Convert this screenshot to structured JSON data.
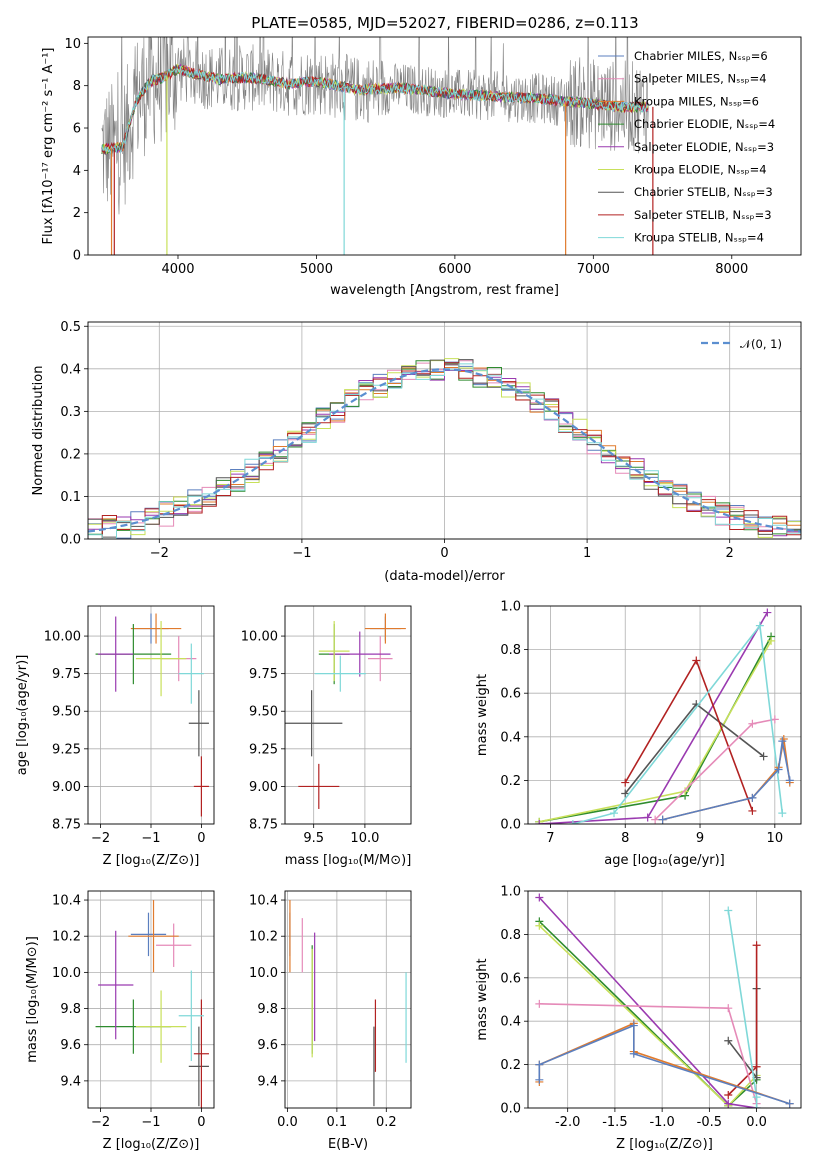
{
  "chart_data": [
    {
      "id": "spectrum",
      "type": "line",
      "title": "PLATE=0585, MJD=52027, FIBERID=0286, z=0.113",
      "xlabel": "wavelength [Angstrom, rest frame]",
      "ylabel": "Flux [fλ10⁻¹⁷ erg cm⁻² s⁻¹ A⁻¹]",
      "xlim": [
        3350,
        8500
      ],
      "ylim": [
        0,
        10.3
      ],
      "xticks": [
        4000,
        5000,
        6000,
        7000,
        8000
      ],
      "yticks": [
        0,
        2,
        4,
        6,
        8,
        10
      ],
      "legend_position": "top-right",
      "legend": [
        {
          "label": "Chabrier MILES, Nₛₛₚ=6",
          "color": "#5b7fbf"
        },
        {
          "label": "Salpeter MILES, Nₛₛₚ=4",
          "color": "#e58ab8"
        },
        {
          "label": "Kroupa MILES, Nₛₛₚ=6",
          "color": "#e07b2e"
        },
        {
          "label": "Chabrier ELODIE, Nₛₛₚ=4",
          "color": "#2e8b2e"
        },
        {
          "label": "Salpeter ELODIE, Nₛₛₚ=3",
          "color": "#9a3ab0"
        },
        {
          "label": "Kroupa ELODIE, Nₛₛₚ=4",
          "color": "#c8e05a"
        },
        {
          "label": "Chabrier STELIB, Nₛₛₚ=3",
          "color": "#555555"
        },
        {
          "label": "Salpeter STELIB, Nₛₛₚ=3",
          "color": "#b22222"
        },
        {
          "label": "Kroupa STELIB, Nₛₛₚ=4",
          "color": "#7fd8d8"
        }
      ],
      "data_color": "#808080",
      "continuum": {
        "x": [
          3450,
          3600,
          3700,
          3800,
          3900,
          4000,
          4100,
          4300,
          4500,
          4800,
          5000,
          5300,
          5600,
          6000,
          6300,
          6600,
          6900,
          7200,
          7400
        ],
        "y": [
          5.0,
          5.1,
          7.3,
          8.2,
          8.4,
          8.8,
          8.6,
          8.3,
          8.4,
          8.1,
          8.2,
          7.8,
          7.9,
          7.6,
          7.5,
          7.4,
          7.2,
          7.0,
          7.0
        ]
      }
    },
    {
      "id": "residuals",
      "type": "line",
      "xlabel": "(data-model)/error",
      "ylabel": "Normed distribution",
      "xlim": [
        -2.5,
        2.5
      ],
      "ylim": [
        0,
        0.51
      ],
      "xticks": [
        -2,
        -1,
        0,
        1,
        2
      ],
      "yticks": [
        0.0,
        0.1,
        0.2,
        0.3,
        0.4,
        0.5
      ],
      "reference_label": "𝒩(0, 1)",
      "reference_color": "#5b8fd0",
      "bin_width": 0.1
    },
    {
      "id": "age_vs_Z",
      "type": "scatter",
      "xlabel": "Z [log₁₀(Z/Z⊙)]",
      "ylabel": "age  [log₁₀(age/yr)]",
      "xlim": [
        -2.25,
        0.25
      ],
      "ylim": [
        8.75,
        10.2
      ],
      "xticks": [
        -2,
        -1,
        0
      ],
      "yticks": [
        8.75,
        9.0,
        9.25,
        9.5,
        9.75,
        10.0
      ],
      "points": [
        {
          "x": -1.0,
          "y": 10.05,
          "xerr": 0.35,
          "yerr": 0.1,
          "color": "#5b7fbf"
        },
        {
          "x": -0.45,
          "y": 9.85,
          "xerr": 0.35,
          "yerr": 0.15,
          "color": "#e58ab8"
        },
        {
          "x": -0.9,
          "y": 10.05,
          "xerr": 0.5,
          "yerr": 0.1,
          "color": "#e07b2e"
        },
        {
          "x": -1.35,
          "y": 9.88,
          "xerr": 0.75,
          "yerr": 0.2,
          "color": "#2e8b2e"
        },
        {
          "x": -1.7,
          "y": 9.88,
          "xerr": 0.35,
          "yerr": 0.25,
          "color": "#9a3ab0"
        },
        {
          "x": -0.8,
          "y": 9.85,
          "xerr": 0.5,
          "yerr": 0.25,
          "color": "#c8e05a"
        },
        {
          "x": -0.05,
          "y": 9.42,
          "xerr": 0.2,
          "yerr": 0.22,
          "color": "#555555"
        },
        {
          "x": 0.0,
          "y": 9.0,
          "xerr": 0.15,
          "yerr": 0.2,
          "color": "#b22222"
        },
        {
          "x": -0.2,
          "y": 9.75,
          "xerr": 0.25,
          "yerr": 0.2,
          "color": "#7fd8d8"
        }
      ]
    },
    {
      "id": "age_vs_mass",
      "type": "scatter",
      "xlabel": "mass [log₁₀(M/M⊙)]",
      "ylabel": "",
      "xlim": [
        9.22,
        10.45
      ],
      "ylim": [
        8.75,
        10.2
      ],
      "xticks": [
        9.5,
        10.0
      ],
      "yticks": [
        8.75,
        9.0,
        9.25,
        9.5,
        9.75,
        10.0
      ],
      "points": [
        {
          "x": 10.2,
          "y": 10.05,
          "xerr": 0.15,
          "yerr": 0.08,
          "color": "#5b7fbf"
        },
        {
          "x": 10.15,
          "y": 9.85,
          "xerr": 0.12,
          "yerr": 0.15,
          "color": "#e58ab8"
        },
        {
          "x": 10.2,
          "y": 10.05,
          "xerr": 0.2,
          "yerr": 0.1,
          "color": "#e07b2e"
        },
        {
          "x": 9.7,
          "y": 9.88,
          "xerr": 0.15,
          "yerr": 0.2,
          "color": "#2e8b2e"
        },
        {
          "x": 9.95,
          "y": 9.88,
          "xerr": 0.3,
          "yerr": 0.15,
          "color": "#9a3ab0"
        },
        {
          "x": 9.7,
          "y": 9.9,
          "xerr": 0.15,
          "yerr": 0.2,
          "color": "#c8e05a"
        },
        {
          "x": 9.48,
          "y": 9.42,
          "xerr": 0.3,
          "yerr": 0.22,
          "color": "#555555"
        },
        {
          "x": 9.55,
          "y": 9.0,
          "xerr": 0.2,
          "yerr": 0.15,
          "color": "#b22222"
        },
        {
          "x": 9.76,
          "y": 9.75,
          "xerr": 0.25,
          "yerr": 0.12,
          "color": "#7fd8d8"
        }
      ]
    },
    {
      "id": "massweight_vs_age",
      "type": "line",
      "xlabel": "age  [log₁₀(age/yr)]",
      "ylabel": "mass weight",
      "xlim": [
        6.7,
        10.35
      ],
      "ylim": [
        0,
        1.0
      ],
      "xticks": [
        7,
        8,
        9,
        10
      ],
      "yticks": [
        0.0,
        0.2,
        0.4,
        0.6,
        0.8,
        1.0
      ],
      "series": [
        {
          "color": "#2e8b2e",
          "x": [
            6.85,
            8.8,
            9.95
          ],
          "y": [
            0.01,
            0.13,
            0.86
          ]
        },
        {
          "color": "#c8e05a",
          "x": [
            6.85,
            8.8,
            9.95
          ],
          "y": [
            0.01,
            0.15,
            0.84
          ]
        },
        {
          "color": "#9a3ab0",
          "x": [
            6.85,
            8.3,
            9.9
          ],
          "y": [
            0.0,
            0.03,
            0.97
          ]
        },
        {
          "color": "#555555",
          "x": [
            8.0,
            8.95,
            9.85
          ],
          "y": [
            0.14,
            0.55,
            0.31
          ]
        },
        {
          "color": "#b22222",
          "x": [
            8.0,
            8.95,
            9.7
          ],
          "y": [
            0.19,
            0.75,
            0.06
          ]
        },
        {
          "color": "#e58ab8",
          "x": [
            8.4,
            9.7,
            10.0
          ],
          "y": [
            0.02,
            0.46,
            0.48
          ]
        },
        {
          "color": "#7fd8d8",
          "x": [
            7.3,
            7.85,
            9.8,
            10.1
          ],
          "y": [
            0.0,
            0.05,
            0.91,
            0.05
          ]
        },
        {
          "color": "#e07b2e",
          "x": [
            8.5,
            9.7,
            10.05,
            10.12,
            10.2
          ],
          "y": [
            0.02,
            0.12,
            0.26,
            0.39,
            0.19
          ]
        },
        {
          "color": "#5b7fbf",
          "x": [
            8.5,
            9.7,
            10.05,
            10.1,
            10.2
          ],
          "y": [
            0.02,
            0.12,
            0.25,
            0.38,
            0.2
          ]
        }
      ]
    },
    {
      "id": "mass_vs_Z",
      "type": "scatter",
      "xlabel": "Z [log₁₀(Z/Z⊙)]",
      "ylabel": "mass [log₁₀(M/M⊙)]",
      "xlim": [
        -2.25,
        0.25
      ],
      "ylim": [
        9.25,
        10.45
      ],
      "xticks": [
        -2,
        -1,
        0
      ],
      "yticks": [
        9.4,
        9.6,
        9.8,
        10.0,
        10.2,
        10.4
      ],
      "points": [
        {
          "x": -1.05,
          "y": 10.21,
          "xerr": 0.35,
          "yerr": 0.12,
          "color": "#5b7fbf"
        },
        {
          "x": -0.55,
          "y": 10.15,
          "xerr": 0.35,
          "yerr": 0.12,
          "color": "#e58ab8"
        },
        {
          "x": -0.95,
          "y": 10.2,
          "xerr": 0.5,
          "yerr": 0.2,
          "color": "#e07b2e"
        },
        {
          "x": -1.35,
          "y": 9.7,
          "xerr": 0.75,
          "yerr": 0.15,
          "color": "#2e8b2e"
        },
        {
          "x": -1.7,
          "y": 9.93,
          "xerr": 0.35,
          "yerr": 0.3,
          "color": "#9a3ab0"
        },
        {
          "x": -0.8,
          "y": 9.7,
          "xerr": 0.5,
          "yerr": 0.2,
          "color": "#c8e05a"
        },
        {
          "x": -0.05,
          "y": 9.48,
          "xerr": 0.2,
          "yerr": 0.22,
          "color": "#555555"
        },
        {
          "x": 0.0,
          "y": 9.55,
          "xerr": 0.15,
          "yerr": 0.3,
          "color": "#b22222"
        },
        {
          "x": -0.2,
          "y": 9.76,
          "xerr": 0.25,
          "yerr": 0.25,
          "color": "#7fd8d8"
        }
      ]
    },
    {
      "id": "mass_vs_ebv",
      "type": "scatter",
      "xlabel": "E(B-V)",
      "ylabel": "",
      "xlim": [
        -0.005,
        0.25
      ],
      "ylim": [
        9.25,
        10.45
      ],
      "xticks": [
        0.0,
        0.1,
        0.2
      ],
      "yticks": [
        9.4,
        9.6,
        9.8,
        10.0,
        10.2,
        10.4
      ],
      "points": [
        {
          "x": 0.005,
          "y": 10.21,
          "xerr": 0,
          "yerr": 0.12,
          "color": "#5b7fbf"
        },
        {
          "x": 0.03,
          "y": 10.15,
          "xerr": 0,
          "yerr": 0.15,
          "color": "#e58ab8"
        },
        {
          "x": 0.005,
          "y": 10.2,
          "xerr": 0,
          "yerr": 0.2,
          "color": "#e07b2e"
        },
        {
          "x": 0.05,
          "y": 9.85,
          "xerr": 0,
          "yerr": 0.3,
          "color": "#2e8b2e"
        },
        {
          "x": 0.055,
          "y": 9.92,
          "xerr": 0,
          "yerr": 0.3,
          "color": "#9a3ab0"
        },
        {
          "x": 0.05,
          "y": 9.83,
          "xerr": 0,
          "yerr": 0.3,
          "color": "#c8e05a"
        },
        {
          "x": 0.175,
          "y": 9.48,
          "xerr": 0,
          "yerr": 0.22,
          "color": "#555555"
        },
        {
          "x": 0.178,
          "y": 9.65,
          "xerr": 0,
          "yerr": 0.2,
          "color": "#b22222"
        },
        {
          "x": 0.24,
          "y": 9.75,
          "xerr": 0,
          "yerr": 0.25,
          "color": "#7fd8d8"
        }
      ]
    },
    {
      "id": "massweight_vs_Z",
      "type": "line",
      "xlabel": "Z [log₁₀(Z/Z⊙)]",
      "ylabel": "mass weight",
      "xlim": [
        -2.42,
        0.47
      ],
      "ylim": [
        0,
        1.0
      ],
      "xticks": [
        -2.0,
        -1.5,
        -1.0,
        -0.5,
        0.0
      ],
      "yticks": [
        0.0,
        0.2,
        0.4,
        0.6,
        0.8,
        1.0
      ],
      "series": [
        {
          "color": "#2e8b2e",
          "x": [
            -2.3,
            -0.3,
            0.0
          ],
          "y": [
            0.86,
            0.01,
            0.13
          ]
        },
        {
          "color": "#c8e05a",
          "x": [
            -2.3,
            -0.3,
            0.0
          ],
          "y": [
            0.84,
            0.01,
            0.15
          ]
        },
        {
          "color": "#9a3ab0",
          "x": [
            -2.3,
            -0.3,
            0.0
          ],
          "y": [
            0.97,
            0.02,
            0.0
          ]
        },
        {
          "color": "#555555",
          "x": [
            -0.3,
            0.0,
            0.0
          ],
          "y": [
            0.31,
            0.14,
            0.55
          ]
        },
        {
          "color": "#b22222",
          "x": [
            -0.3,
            0.0,
            0.0
          ],
          "y": [
            0.06,
            0.19,
            0.75
          ]
        },
        {
          "color": "#e58ab8",
          "x": [
            -2.3,
            -0.3,
            0.0
          ],
          "y": [
            0.48,
            0.46,
            0.02
          ]
        },
        {
          "color": "#7fd8d8",
          "x": [
            -0.3,
            0.0,
            0.0
          ],
          "y": [
            0.91,
            0.05,
            0.0
          ]
        },
        {
          "color": "#e07b2e",
          "x": [
            -2.3,
            -2.3,
            -1.3,
            -1.3,
            0.35
          ],
          "y": [
            0.12,
            0.2,
            0.39,
            0.26,
            0.02
          ]
        },
        {
          "color": "#5b7fbf",
          "x": [
            -2.3,
            -2.3,
            -1.3,
            -1.3,
            0.35
          ],
          "y": [
            0.13,
            0.2,
            0.38,
            0.25,
            0.02
          ]
        }
      ]
    }
  ]
}
